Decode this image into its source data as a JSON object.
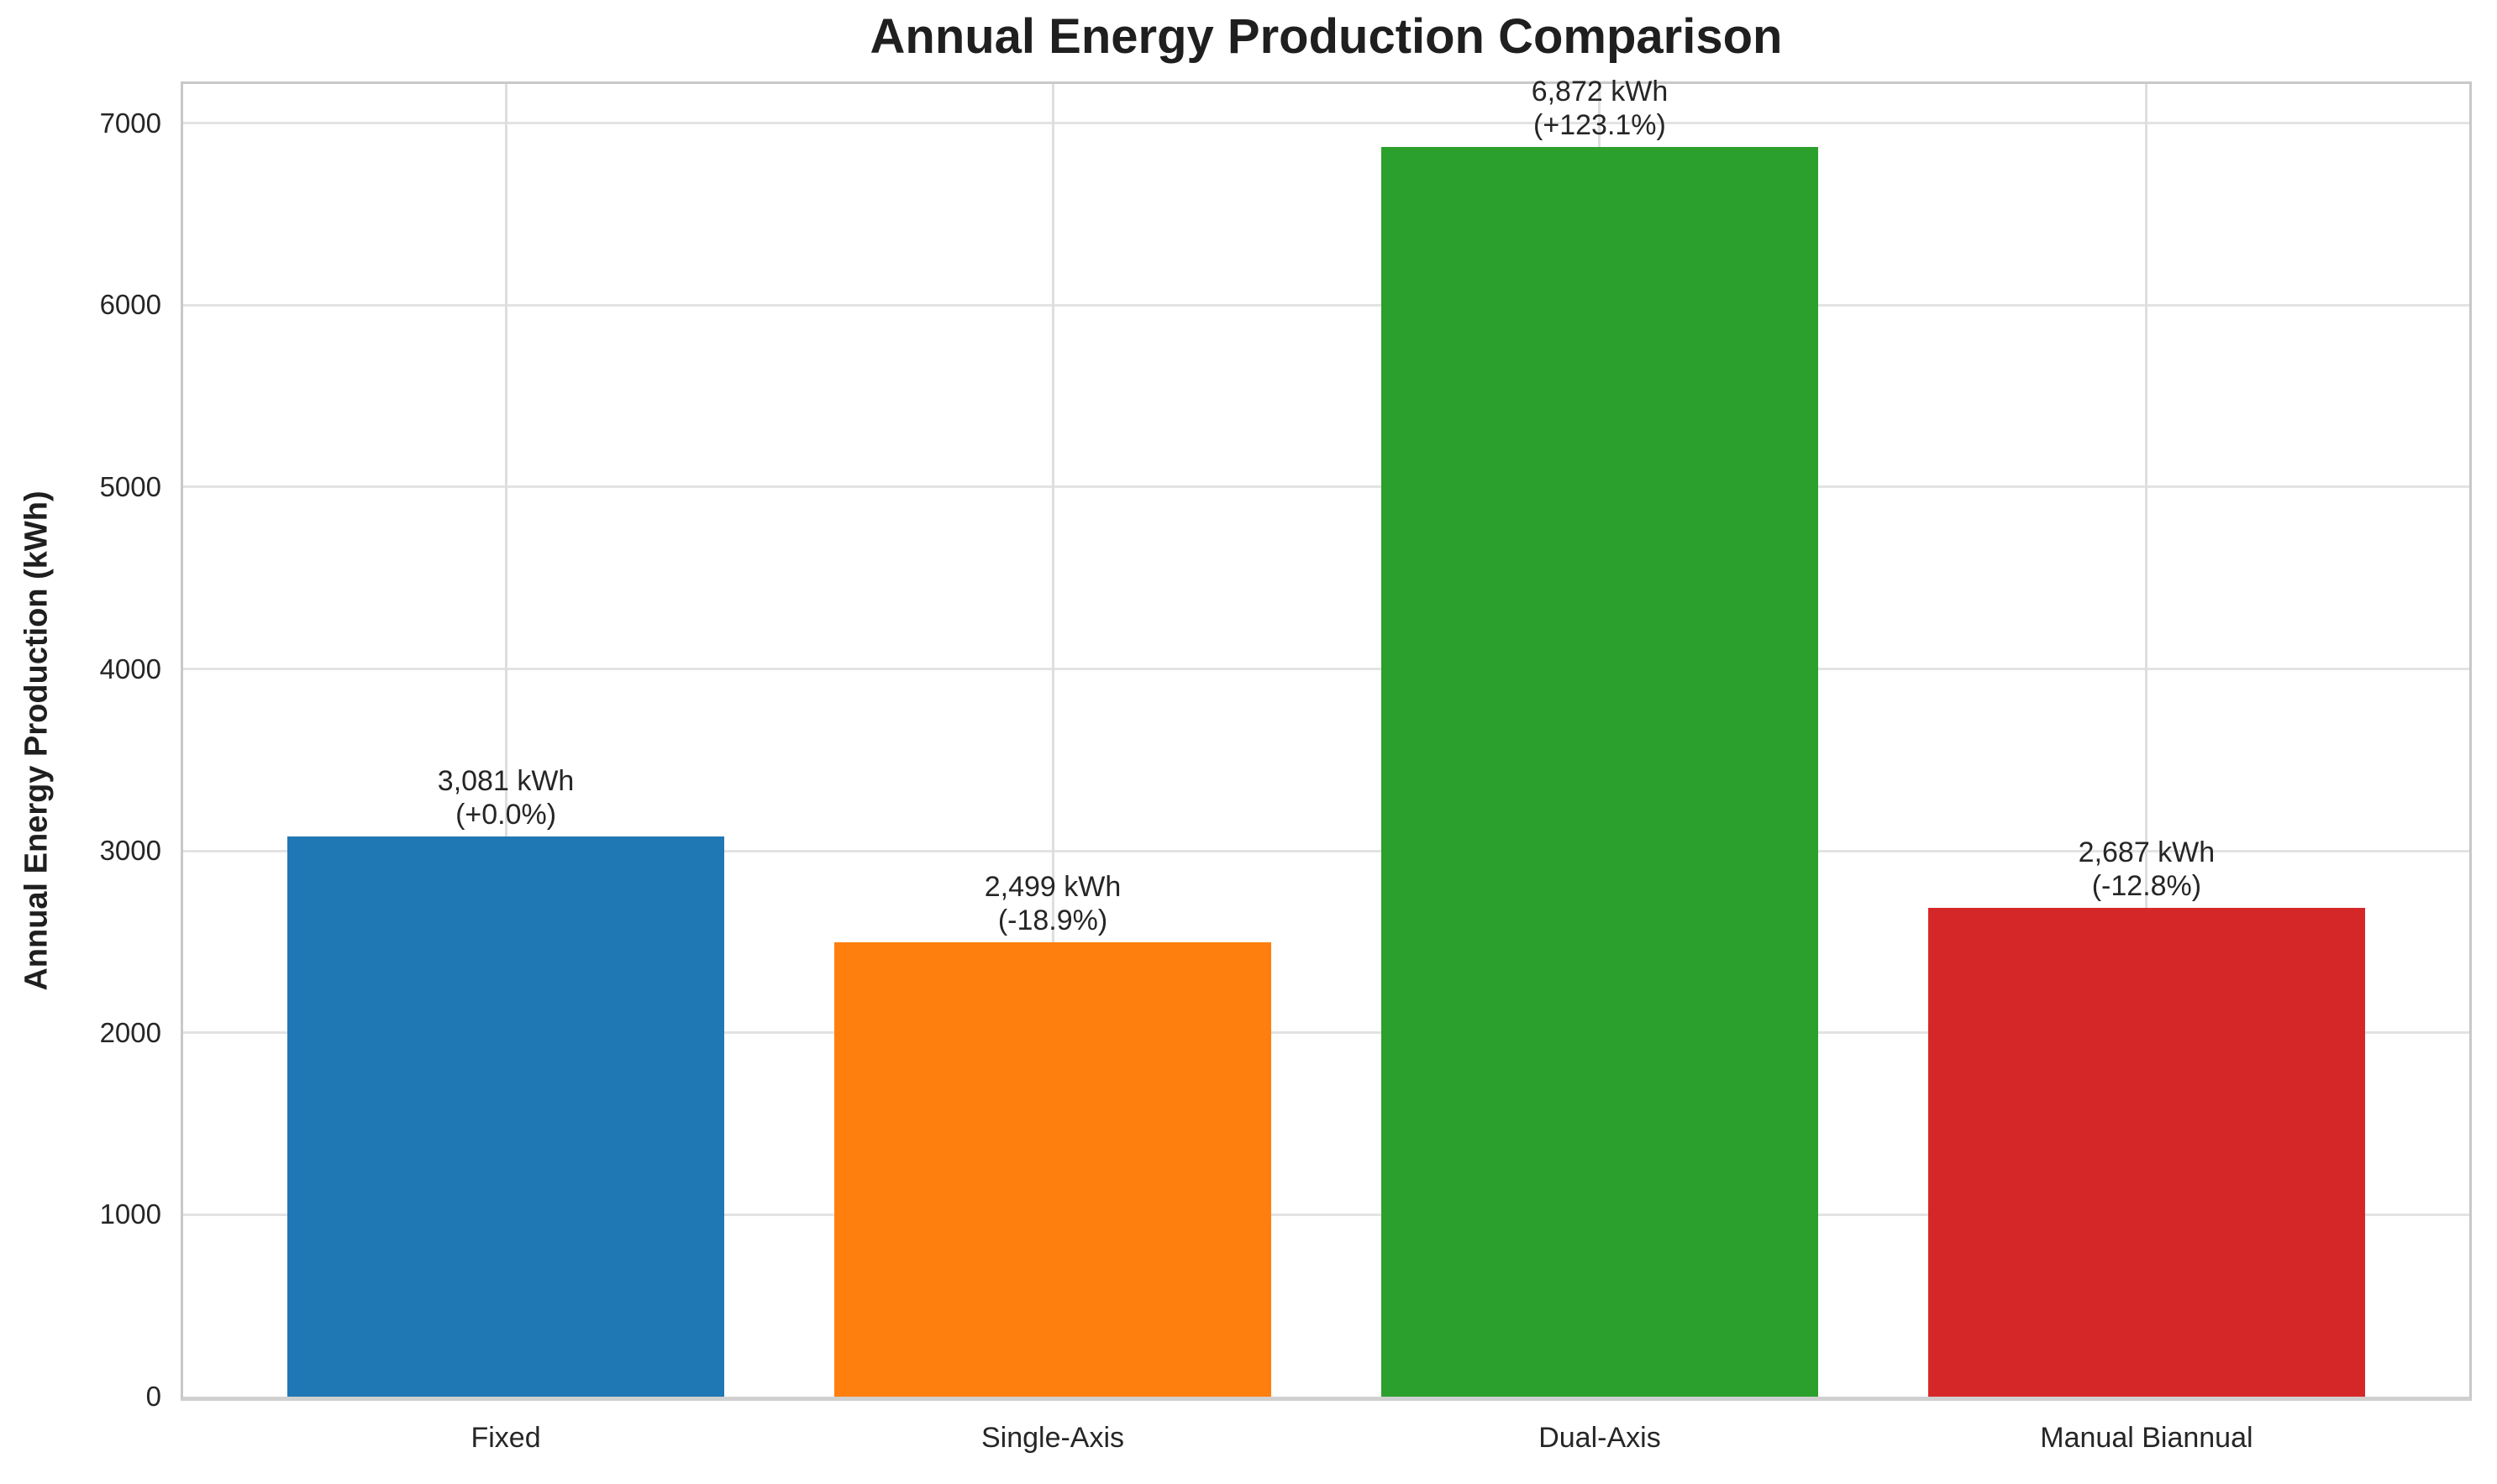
{
  "chart_data": {
    "type": "bar",
    "title": "Annual Energy Production Comparison",
    "ylabel": "Annual Energy Production (kWh)",
    "xlabel": "",
    "categories": [
      "Fixed",
      "Single-Axis",
      "Dual-Axis",
      "Manual Biannual"
    ],
    "values": [
      3081,
      2499,
      6872,
      2687
    ],
    "bar_labels": [
      {
        "value_label": "3,081 kWh",
        "pct_label": "(+0.0%)"
      },
      {
        "value_label": "2,499 kWh",
        "pct_label": "(-18.9%)"
      },
      {
        "value_label": "6,872 kWh",
        "pct_label": "(+123.1%)"
      },
      {
        "value_label": "2,687 kWh",
        "pct_label": "(-12.8%)"
      }
    ],
    "bar_colors": [
      "#1f77b4",
      "#ff7f0e",
      "#2ca02c",
      "#d62728"
    ],
    "yticks": [
      0,
      1000,
      2000,
      3000,
      4000,
      5000,
      6000,
      7000
    ],
    "ytick_labels": [
      "0",
      "1000",
      "2000",
      "3000",
      "4000",
      "5000",
      "6000",
      "7000"
    ],
    "ylim": [
      0,
      7216
    ],
    "xlim": [
      -0.59,
      3.59
    ],
    "bar_width": 0.8,
    "grid": "both",
    "legend": "none",
    "colors": {
      "grid_h": "#e3e3e3",
      "grid_v": "#dedede",
      "spine": "#c8c8c8",
      "text": "#262626"
    }
  }
}
